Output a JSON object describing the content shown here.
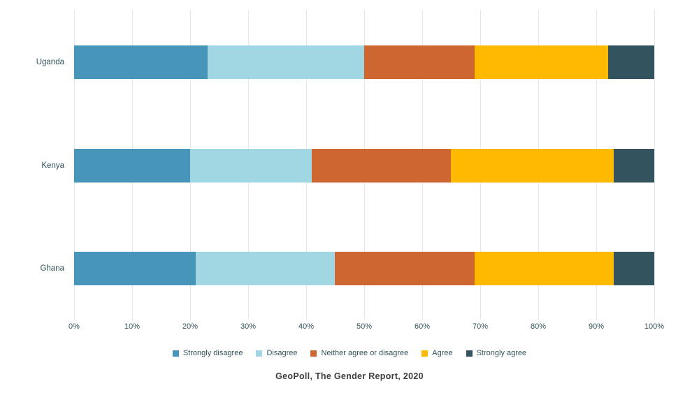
{
  "chart_data": {
    "type": "bar",
    "orientation": "horizontal",
    "stacked": true,
    "categories": [
      "Uganda",
      "Kenya",
      "Ghana"
    ],
    "series": [
      {
        "name": "Strongly disagree",
        "color": "#4796B9",
        "values": [
          23,
          20,
          21
        ]
      },
      {
        "name": "Disagree",
        "color": "#A1D6E3",
        "values": [
          27,
          21,
          24
        ]
      },
      {
        "name": "Neither agree or disagree",
        "color": "#CE6631",
        "values": [
          19,
          24,
          24
        ]
      },
      {
        "name": "Agree",
        "color": "#FFBA00",
        "values": [
          23,
          28,
          24
        ]
      },
      {
        "name": "Strongly agree",
        "color": "#33545F",
        "values": [
          8,
          7,
          7
        ]
      }
    ],
    "x_ticks": [
      "0%",
      "10%",
      "20%",
      "30%",
      "40%",
      "50%",
      "60%",
      "70%",
      "80%",
      "90%",
      "100%"
    ],
    "xlim": [
      0,
      100
    ],
    "grid": "vertical",
    "legend_position": "bottom",
    "title": "",
    "source": "GeoPoll, The Gender Report, 2020"
  },
  "colors": {
    "gridline": "#E0EAED",
    "axis_text": "#33525C",
    "footer_text": "#3D3D3D",
    "background": "#FFFFFF"
  }
}
